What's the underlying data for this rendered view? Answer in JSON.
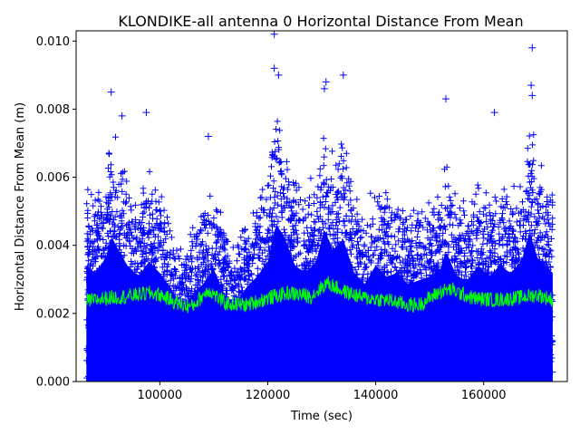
{
  "chart_data": {
    "type": "scatter",
    "title": "KLONDIKE-all antenna 0 Horizontal Distance From Mean",
    "xlabel": "Time (sec)",
    "ylabel": "Horizontal Distance From Mean (m)",
    "xlim": [
      84500,
      175500
    ],
    "ylim": [
      0,
      0.0103
    ],
    "x_ticks": [
      100000,
      120000,
      140000,
      160000
    ],
    "x_tick_labels": [
      "100000",
      "120000",
      "140000",
      "160000"
    ],
    "y_ticks": [
      0,
      0.002,
      0.004,
      0.006,
      0.008,
      0.01
    ],
    "y_tick_labels": [
      "0.000",
      "0.002",
      "0.004",
      "0.006",
      "0.008",
      "0.010"
    ],
    "grid": false,
    "series": [
      {
        "marker": "plus",
        "color": "#0000ff",
        "x_range": [
          86400,
          172800
        ],
        "envelope": [
          [
            86400,
            0.0062
          ],
          [
            88000,
            0.0058
          ],
          [
            90000,
            0.0066
          ],
          [
            91000,
            0.0078
          ],
          [
            92000,
            0.0072
          ],
          [
            94000,
            0.0062
          ],
          [
            96000,
            0.0056
          ],
          [
            98000,
            0.0064
          ],
          [
            100000,
            0.0058
          ],
          [
            102000,
            0.005
          ],
          [
            104000,
            0.004
          ],
          [
            106000,
            0.0046
          ],
          [
            108000,
            0.0052
          ],
          [
            110000,
            0.006
          ],
          [
            112000,
            0.0046
          ],
          [
            114000,
            0.0042
          ],
          [
            116000,
            0.005
          ],
          [
            118000,
            0.0056
          ],
          [
            120000,
            0.0064
          ],
          [
            121500,
            0.0084
          ],
          [
            123000,
            0.0078
          ],
          [
            125000,
            0.0062
          ],
          [
            127000,
            0.0058
          ],
          [
            129000,
            0.0064
          ],
          [
            130500,
            0.0082
          ],
          [
            132000,
            0.007
          ],
          [
            134000,
            0.0076
          ],
          [
            136000,
            0.0058
          ],
          [
            138000,
            0.0052
          ],
          [
            140000,
            0.0062
          ],
          [
            142000,
            0.0056
          ],
          [
            144000,
            0.0058
          ],
          [
            146000,
            0.0052
          ],
          [
            148000,
            0.0054
          ],
          [
            150000,
            0.0056
          ],
          [
            152000,
            0.006
          ],
          [
            153000,
            0.007
          ],
          [
            155000,
            0.0056
          ],
          [
            157000,
            0.0054
          ],
          [
            159000,
            0.0062
          ],
          [
            161000,
            0.0056
          ],
          [
            163000,
            0.0062
          ],
          [
            165000,
            0.0058
          ],
          [
            167000,
            0.0064
          ],
          [
            168500,
            0.008
          ],
          [
            170000,
            0.0066
          ],
          [
            172800,
            0.0058
          ]
        ],
        "outliers": [
          [
            121200,
            0.0102
          ],
          [
            121200,
            0.0092
          ],
          [
            122000,
            0.009
          ],
          [
            134000,
            0.009
          ],
          [
            130800,
            0.0088
          ],
          [
            169000,
            0.0098
          ],
          [
            168800,
            0.0087
          ],
          [
            153000,
            0.0083
          ],
          [
            91000,
            0.0085
          ],
          [
            97500,
            0.0079
          ],
          [
            169000,
            0.0084
          ],
          [
            162000,
            0.0079
          ],
          [
            130500,
            0.0086
          ],
          [
            93000,
            0.0078
          ],
          [
            109000,
            0.0072
          ]
        ]
      },
      {
        "marker": "line",
        "color": "#00ff00",
        "x": [
          86400,
          90000,
          94000,
          98000,
          100000,
          104000,
          106000,
          109000,
          112000,
          116000,
          120000,
          124000,
          128000,
          131000,
          134000,
          138000,
          142000,
          146000,
          148000,
          152000,
          154000,
          158000,
          162000,
          166000,
          170000,
          172800
        ],
        "y": [
          0.00235,
          0.00245,
          0.0025,
          0.0026,
          0.00255,
          0.00225,
          0.0022,
          0.0027,
          0.0023,
          0.00225,
          0.00245,
          0.0026,
          0.0025,
          0.0029,
          0.00265,
          0.00245,
          0.0024,
          0.00225,
          0.00225,
          0.00265,
          0.0027,
          0.00245,
          0.0024,
          0.00245,
          0.00255,
          0.0024
        ],
        "band": 0.00045
      }
    ]
  }
}
